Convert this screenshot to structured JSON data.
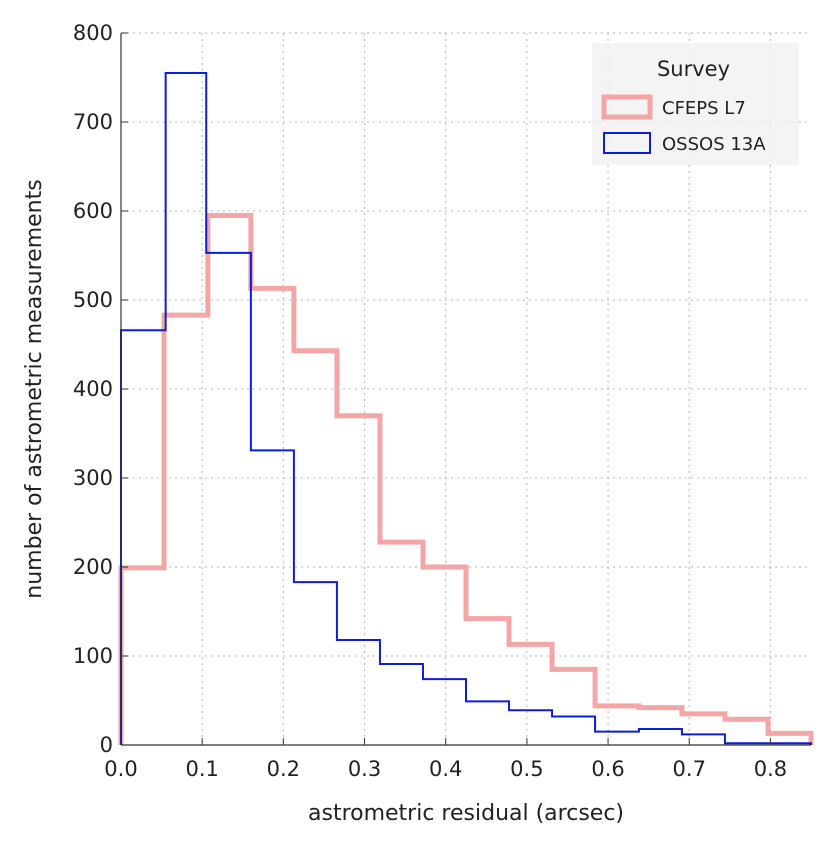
{
  "chart_data": {
    "type": "histogram",
    "title": "",
    "xlabel": "astrometric residual (arcsec)",
    "ylabel": "number of astrometric measurements",
    "xlim": [
      0.0,
      0.85
    ],
    "ylim": [
      0,
      800
    ],
    "xticks": [
      "0.0",
      "0.1",
      "0.2",
      "0.3",
      "0.4",
      "0.5",
      "0.6",
      "0.7",
      "0.8"
    ],
    "yticks": [
      "0",
      "100",
      "200",
      "300",
      "400",
      "500",
      "600",
      "700",
      "800"
    ],
    "grid": true,
    "legend": {
      "title": "Survey",
      "placement": "top-right"
    },
    "series": [
      {
        "name": "CFEPS L7",
        "color": "#f4a6a6",
        "bin_edges": [
          0.0,
          0.053,
          0.107,
          0.16,
          0.213,
          0.266,
          0.319,
          0.372,
          0.425,
          0.478,
          0.531,
          0.584,
          0.638,
          0.691,
          0.744,
          0.797,
          0.85
        ],
        "values": [
          199,
          483,
          595,
          513,
          443,
          370,
          228,
          200,
          142,
          113,
          85,
          44,
          42,
          35,
          29,
          13
        ]
      },
      {
        "name": "OSSOS 13A",
        "color": "#0a1fd6",
        "bin_edges": [
          0.0,
          0.055,
          0.105,
          0.16,
          0.213,
          0.266,
          0.319,
          0.372,
          0.425,
          0.478,
          0.531,
          0.584,
          0.638,
          0.691,
          0.744,
          0.797,
          0.85
        ],
        "values": [
          466,
          755,
          553,
          331,
          183,
          118,
          91,
          74,
          49,
          39,
          32,
          15,
          18,
          12,
          2,
          2
        ]
      }
    ]
  }
}
